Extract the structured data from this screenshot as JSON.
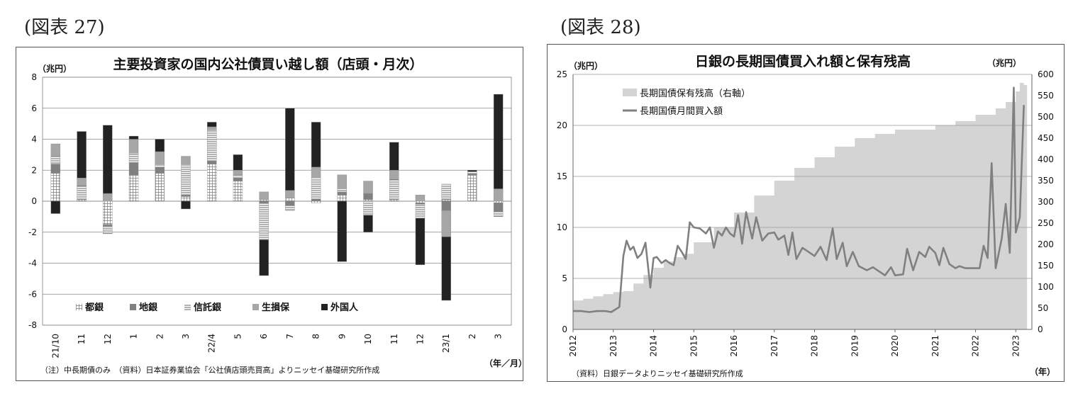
{
  "figure_labels": {
    "left": "(図表 27)",
    "right": "(図表 28)"
  },
  "chart_data": [
    {
      "type": "bar",
      "stacked": true,
      "title": "主要投資家の国内公社債買い越し額（店頭・月次）",
      "ylabel": "（兆円）",
      "xlabel": "（年／月）",
      "ylim": [
        -8,
        8
      ],
      "yticks": [
        "8",
        "6",
        "4",
        "2",
        "0",
        "-2",
        "-4",
        "-6",
        "-8"
      ],
      "categories": [
        "21/10",
        "11",
        "12",
        "1",
        "2",
        "3",
        "22/4",
        "5",
        "6",
        "7",
        "8",
        "9",
        "10",
        "11",
        "12",
        "23/1",
        "2",
        "3"
      ],
      "note": "（注）中長期債のみ　（資料）日本証券業協会「公社債店頭売買高」よりニッセイ基礎研究所作成",
      "legend_position": "bottom-inside",
      "series": [
        {
          "name": "都銀",
          "color": "#ffffff",
          "pattern": "grid",
          "values": [
            1.8,
            0.1,
            -1.5,
            1.7,
            1.8,
            0.3,
            2.4,
            1.3,
            0.1,
            0.2,
            -0.1,
            0.4,
            0.1,
            0.1,
            -0.1,
            0.1,
            1.7,
            -0.1
          ]
        },
        {
          "name": "地銀",
          "color": "#808080",
          "pattern": "solid",
          "values": [
            0.6,
            0.0,
            -0.1,
            0.8,
            0.4,
            0.1,
            0.2,
            0.2,
            -0.1,
            -0.3,
            0.1,
            0.2,
            0.4,
            0.0,
            -0.1,
            -0.6,
            0.1,
            -0.6
          ]
        },
        {
          "name": "信託銀",
          "color": "#ffffff",
          "pattern": "hlines",
          "values": [
            0.5,
            0.9,
            -0.5,
            0.6,
            0.2,
            2.0,
            2.0,
            0.2,
            -2.4,
            -0.3,
            1.4,
            0.2,
            -0.9,
            1.3,
            -0.9,
            1.0,
            0.1,
            -0.3
          ]
        },
        {
          "name": "生損保",
          "color": "#a6a6a6",
          "pattern": "solid",
          "values": [
            0.8,
            0.5,
            0.5,
            0.9,
            0.8,
            0.5,
            0.2,
            0.3,
            0.5,
            0.5,
            0.7,
            0.9,
            0.8,
            0.6,
            0.4,
            -1.7,
            0.0,
            0.8
          ]
        },
        {
          "name": "外国人",
          "color": "#222222",
          "pattern": "solid",
          "values": [
            -0.8,
            3.0,
            4.4,
            0.2,
            0.8,
            -0.5,
            0.3,
            1.0,
            -2.3,
            5.3,
            2.9,
            -3.9,
            -1.1,
            1.8,
            -3.0,
            -4.1,
            0.1,
            6.1
          ]
        }
      ]
    },
    {
      "type": "line",
      "title": "日銀の長期国債買入れ額と保有残高",
      "ylabel_left": "（兆円）",
      "ylabel_right": "（兆円）",
      "xlabel": "（年）",
      "ylim_left": [
        0,
        25
      ],
      "ylim_right": [
        0,
        600
      ],
      "yticks_left": [
        "25",
        "20",
        "15",
        "10",
        "5",
        "0"
      ],
      "yticks_right": [
        "600",
        "550",
        "500",
        "450",
        "400",
        "350",
        "300",
        "250",
        "200",
        "150",
        "100",
        "50",
        "0"
      ],
      "xticks": [
        "2012",
        "2013",
        "2014",
        "2015",
        "2016",
        "2017",
        "2018",
        "2019",
        "2020",
        "2021",
        "2022",
        "2023"
      ],
      "note": "（資料）日銀データよりニッセイ基礎研究所作成",
      "legend_position": "top-left",
      "series": [
        {
          "name": "長期国債保有残高（右軸）",
          "type": "area",
          "axis": "right",
          "color": "#d4d4d4",
          "x": [
            2012,
            2012.25,
            2012.5,
            2012.75,
            2013,
            2013.25,
            2013.5,
            2013.75,
            2014,
            2014.25,
            2014.5,
            2014.75,
            2015,
            2015.5,
            2016,
            2016.5,
            2017,
            2017.5,
            2018,
            2018.5,
            2019,
            2019.5,
            2020,
            2020.5,
            2021,
            2021.5,
            2022,
            2022.25,
            2022.5,
            2022.75,
            2023,
            2023.1,
            2023.2
          ],
          "values": [
            68,
            72,
            78,
            83,
            88,
            90,
            108,
            128,
            145,
            160,
            170,
            178,
            205,
            240,
            275,
            315,
            350,
            380,
            405,
            430,
            450,
            460,
            470,
            470,
            480,
            490,
            505,
            505,
            520,
            535,
            560,
            580,
            575
          ]
        },
        {
          "name": "長期国債月間買入額",
          "type": "line",
          "axis": "left",
          "color": "#808080",
          "x": [
            2012,
            2012.2,
            2012.4,
            2012.6,
            2012.8,
            2012.95,
            2013.15,
            2013.25,
            2013.33,
            2013.42,
            2013.5,
            2013.6,
            2013.7,
            2013.8,
            2013.92,
            2014,
            2014.08,
            2014.2,
            2014.3,
            2014.4,
            2014.5,
            2014.6,
            2014.7,
            2014.8,
            2014.9,
            2015,
            2015.15,
            2015.3,
            2015.4,
            2015.5,
            2015.6,
            2015.7,
            2015.8,
            2015.9,
            2016,
            2016.1,
            2016.2,
            2016.3,
            2016.45,
            2016.55,
            2016.7,
            2016.85,
            2017,
            2017.1,
            2017.25,
            2017.35,
            2017.45,
            2017.55,
            2017.7,
            2017.85,
            2018,
            2018.15,
            2018.3,
            2018.45,
            2018.55,
            2018.7,
            2018.8,
            2018.95,
            2019.1,
            2019.3,
            2019.45,
            2019.6,
            2019.75,
            2019.9,
            2020,
            2020.2,
            2020.3,
            2020.45,
            2020.6,
            2020.75,
            2020.85,
            2021,
            2021.1,
            2021.2,
            2021.35,
            2021.5,
            2021.6,
            2021.75,
            2021.9,
            2022,
            2022.1,
            2022.2,
            2022.3,
            2022.4,
            2022.5,
            2022.65,
            2022.75,
            2022.85,
            2022.95,
            2023,
            2023.1,
            2023.2
          ],
          "values": [
            1.8,
            1.8,
            1.7,
            1.8,
            1.8,
            1.7,
            2.2,
            7.2,
            8.7,
            7.8,
            8.1,
            7.0,
            7.4,
            8.5,
            4.1,
            7.0,
            7.1,
            6.5,
            6.8,
            6.5,
            6.3,
            8.2,
            7.6,
            6.9,
            10.5,
            10.0,
            9.9,
            9.4,
            10.0,
            8.0,
            9.6,
            9.2,
            10.0,
            9.4,
            9.1,
            11.2,
            8.4,
            11.5,
            8.9,
            11.0,
            8.7,
            9.4,
            9.5,
            8.8,
            9.2,
            7.3,
            9.5,
            6.9,
            8.0,
            7.6,
            7.2,
            8.1,
            6.8,
            9.9,
            6.9,
            8.5,
            6.2,
            7.6,
            6.2,
            5.8,
            6.1,
            5.7,
            5.3,
            6.1,
            5.3,
            5.4,
            7.9,
            5.8,
            7.6,
            7.1,
            8.1,
            7.5,
            6.3,
            8.0,
            6.4,
            6.0,
            6.2,
            6.0,
            6.0,
            6.0,
            6.0,
            8.2,
            7.0,
            16.3,
            6.0,
            8.9,
            12.3,
            7.5,
            23.7,
            9.5,
            11.0,
            22.0
          ]
        }
      ]
    }
  ]
}
